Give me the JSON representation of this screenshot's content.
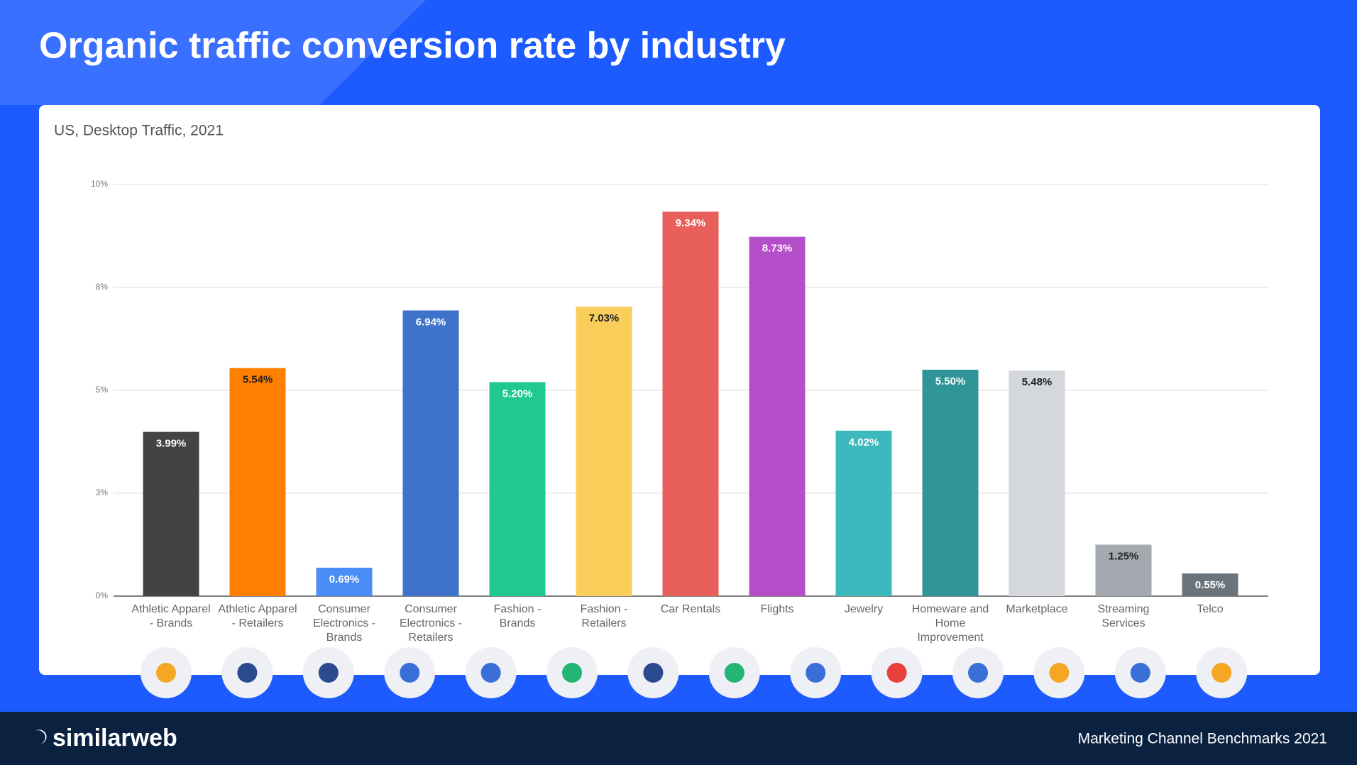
{
  "chart_data": {
    "type": "bar",
    "title": "Organic traffic conversion rate by industry",
    "subtitle": "US, Desktop Traffic, 2021",
    "categories": [
      "Athletic Apparel - Brands",
      "Athletic Apparel - Retailers",
      "Consumer Electronics - Brands",
      "Consumer Electronics - Retailers",
      "Fashion - Brands",
      "Fashion - Retailers",
      "Car Rentals",
      "Flights",
      "Jewelry",
      "Homeware and Home Improvement",
      "Marketplace",
      "Streaming Services",
      "Telco"
    ],
    "values": [
      3.99,
      5.54,
      0.69,
      6.94,
      5.2,
      7.03,
      9.34,
      8.73,
      4.02,
      5.5,
      5.48,
      1.25,
      0.55
    ],
    "value_labels": [
      "3.99%",
      "5.54%",
      "0.69%",
      "6.94%",
      "5.20%",
      "7.03%",
      "9.34%",
      "8.73%",
      "4.02%",
      "5.50%",
      "5.48%",
      "1.25%",
      "0.55%"
    ],
    "colors": [
      "#434343",
      "#ff7f00",
      "#4a8df7",
      "#3f72c9",
      "#22c98f",
      "#f9ce5a",
      "#e85f5c",
      "#b54fc9",
      "#3db8bd",
      "#2f9599",
      "#d4d7db",
      "#a3a9ae",
      "#6b747b"
    ],
    "ylim": [
      0,
      10
    ],
    "yticks": [
      {
        "value": 0,
        "label": "0%"
      },
      {
        "value": 2.5,
        "label": "3%"
      },
      {
        "value": 5,
        "label": "5%"
      },
      {
        "value": 7.5,
        "label": "8%"
      },
      {
        "value": 10,
        "label": "10%"
      }
    ],
    "grid": true
  },
  "footer": {
    "brand": "similarweb",
    "caption": "Marketing Channel Benchmarks 2021"
  }
}
